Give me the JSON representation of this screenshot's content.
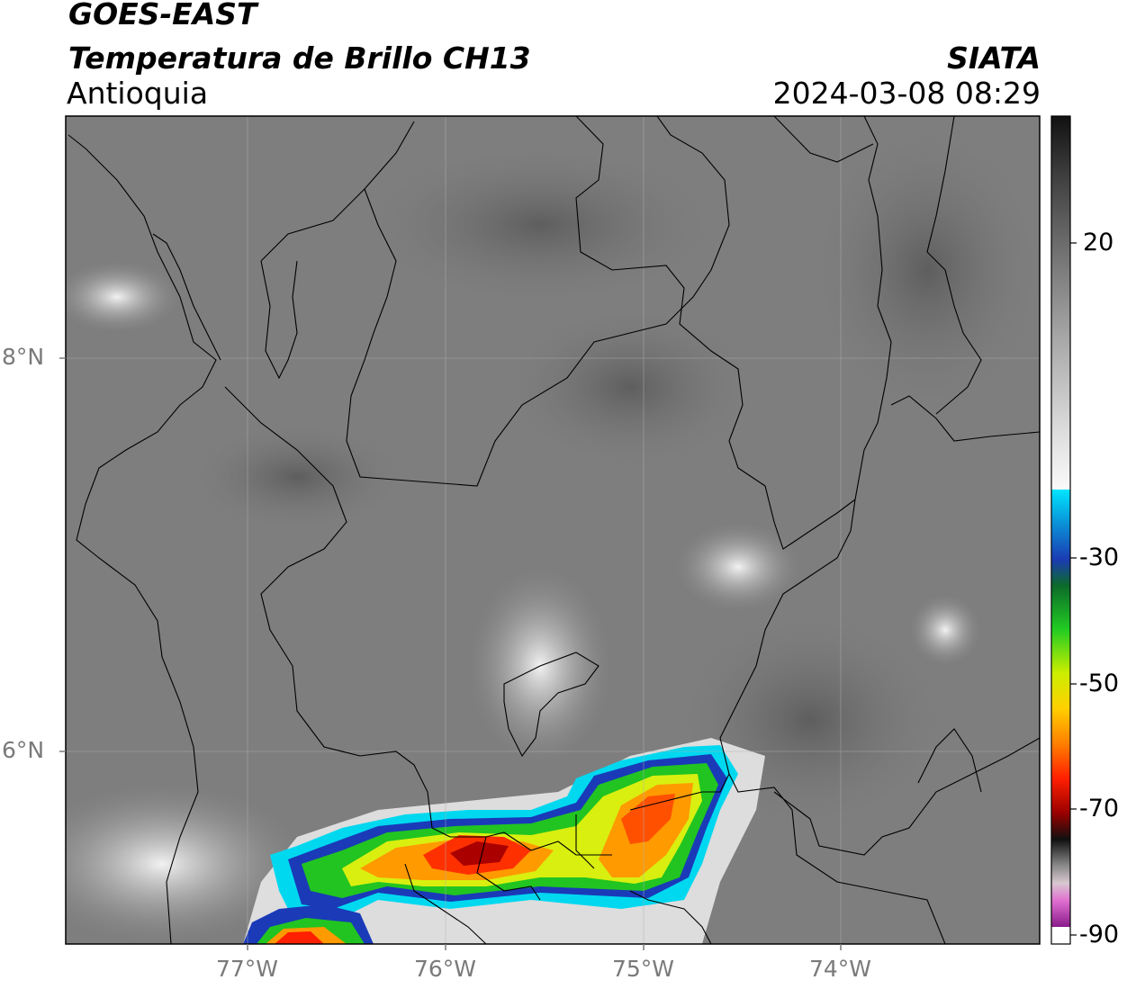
{
  "header": {
    "satellite": "GOES-EAST",
    "product": "Temperatura de Brillo CH13",
    "region": "Antioquia",
    "agency": "SIATA",
    "datetime": "2024-03-08 08:29"
  },
  "map": {
    "lat_ticks": [
      "8°N",
      "6°N"
    ],
    "lon_ticks": [
      "77°W",
      "76°W",
      "75°W",
      "74°W"
    ]
  },
  "colorbar": {
    "ticks": [
      "20",
      "-30",
      "-50",
      "-70",
      "-90"
    ],
    "palette": {
      "warm_gray": [
        "#1a1a1a",
        "#555555",
        "#8a8a8a",
        "#c0c0c0",
        "#f4f4f4"
      ],
      "cold": [
        "#00e5ff",
        "#1b3bb3",
        "#0c6b2a",
        "#22cc22",
        "#ccee00",
        "#ffd000",
        "#ff8000",
        "#ff2000",
        "#990000",
        "#101010",
        "#d8c8d0",
        "#e070d0",
        "#8a1a8a"
      ]
    }
  }
}
